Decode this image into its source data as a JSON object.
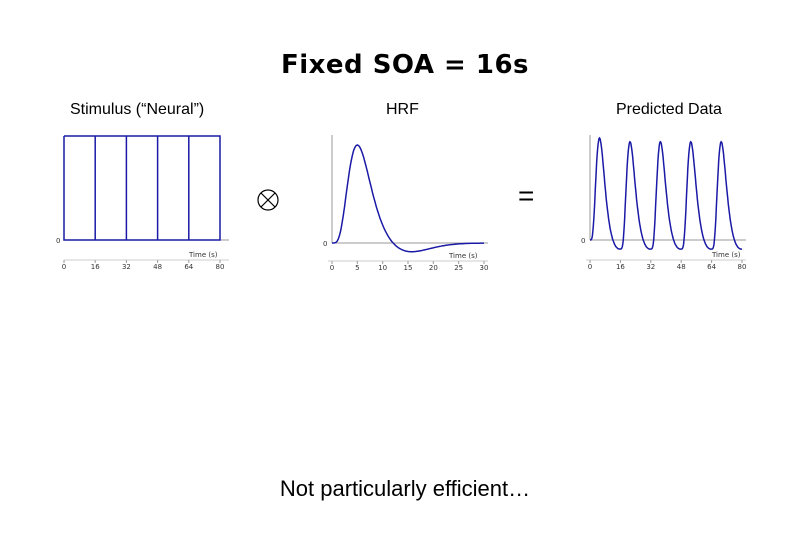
{
  "title": "Fixed SOA = 16s",
  "labels": {
    "stimulus": "Stimulus (“Neural”)",
    "hrf": "HRF",
    "predicted": "Predicted Data"
  },
  "operators": {
    "convolution_icon": "circled-times-icon",
    "equals": "="
  },
  "caption": "Not particularly efficient…",
  "colors": {
    "signal": "#1a1aa6",
    "axis": "#9a9a9a",
    "text": "#000000"
  },
  "panels": [
    {
      "id": "stimulus",
      "xlabel": "Time (s)",
      "xticks": [
        "0",
        "16",
        "32",
        "48",
        "64",
        "80"
      ],
      "ytick": "0",
      "chart_data": {
        "type": "line",
        "stimulus_onsets_s": [
          0,
          16,
          32,
          48,
          64
        ],
        "soa_s": 16,
        "xlim": [
          0,
          80
        ]
      }
    },
    {
      "id": "hrf",
      "xlabel": "Time (s)",
      "xticks": [
        "0",
        "5",
        "10",
        "15",
        "20",
        "25",
        "30"
      ],
      "ytick": "0",
      "chart_data": {
        "type": "line",
        "shape": "canonical HRF",
        "peak_s": 5,
        "undershoot_s": 15,
        "xlim": [
          0,
          30
        ]
      }
    },
    {
      "id": "predicted",
      "xlabel": "Time (s)",
      "xticks": [
        "0",
        "16",
        "32",
        "48",
        "64",
        "80"
      ],
      "ytick": "0",
      "chart_data": {
        "type": "line",
        "peaks_s": [
          5,
          21,
          37,
          53,
          69
        ],
        "xlim": [
          0,
          80
        ]
      }
    }
  ]
}
